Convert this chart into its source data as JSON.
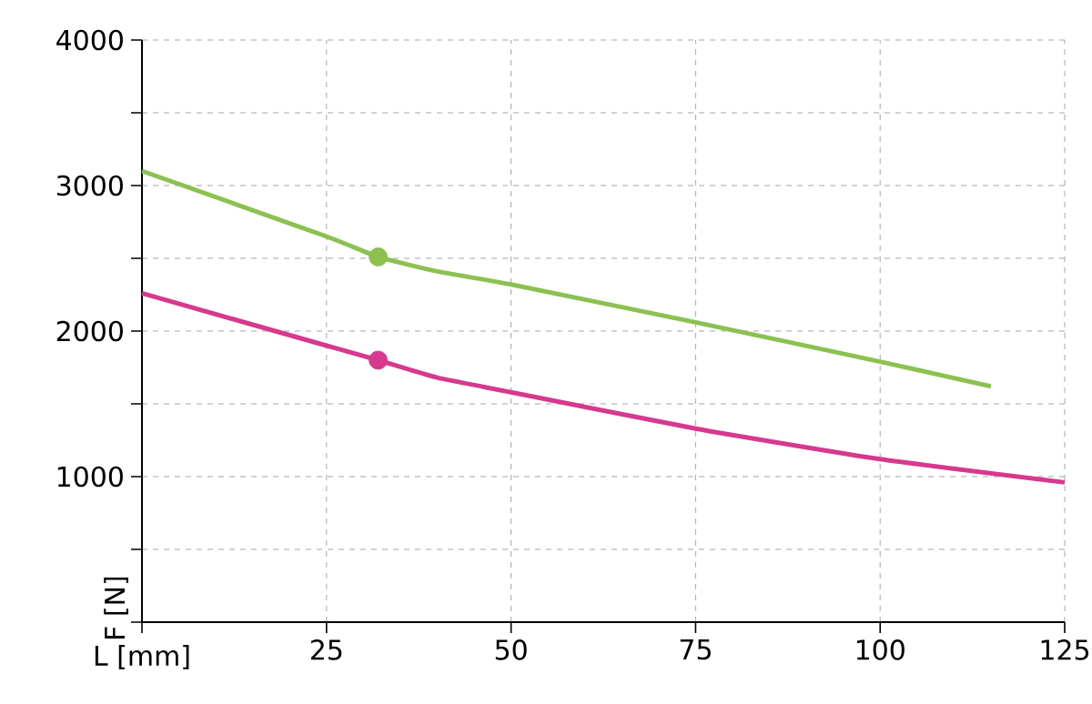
{
  "chart_data": {
    "type": "line",
    "xlabel": "L [mm]",
    "ylabel": "F [N]",
    "xlim": [
      0,
      125
    ],
    "ylim": [
      0,
      4000
    ],
    "xticks": [
      {
        "value": 0,
        "label": null
      },
      25,
      50,
      75,
      100,
      125
    ],
    "yticks": [
      {
        "value": 0,
        "label": null
      },
      {
        "value": 500,
        "label": null
      },
      1000,
      {
        "value": 1500,
        "label": null
      },
      2000,
      {
        "value": 2500,
        "label": null
      },
      3000,
      {
        "value": 3500,
        "label": null
      },
      4000
    ],
    "grid": true,
    "line_style": "solid",
    "series": [
      {
        "color": "#d6398e",
        "x": [
          0,
          25,
          32,
          40,
          50,
          75,
          100,
          125
        ],
        "values": [
          2260,
          1900,
          1800,
          1680,
          1580,
          1330,
          1120,
          960
        ]
      },
      {
        "color": "#8cc152",
        "x": [
          0,
          25,
          32,
          40,
          50,
          75,
          100,
          115
        ],
        "values": [
          3100,
          2650,
          2510,
          2410,
          2320,
          2060,
          1790,
          1620
        ]
      },
      {
        "type": "scatter",
        "marker": "circle",
        "color": "#d6398e",
        "x": [
          32
        ],
        "values": [
          1800
        ]
      },
      {
        "type": "scatter",
        "marker": "circle",
        "color": "#8cc152",
        "x": [
          32
        ],
        "values": [
          2510
        ]
      }
    ]
  }
}
